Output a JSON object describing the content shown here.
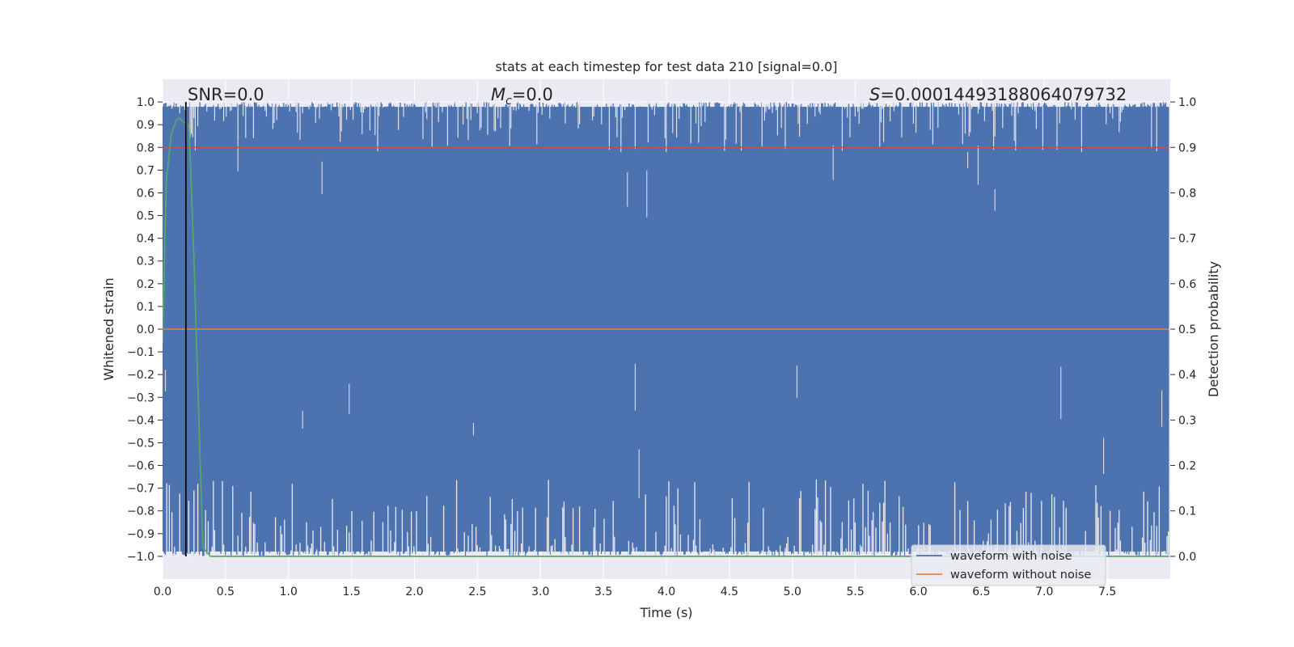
{
  "chart_data": {
    "type": "line",
    "title": "stats at each timestep for test data 210 [signal=0.0]",
    "xlabel": "Time (s)",
    "ylabel": "Whitened strain",
    "ylabel_right": "Detection probability",
    "xlim": [
      0.0,
      8.0
    ],
    "ylim": [
      -1.1,
      1.1
    ],
    "ylim_right": [
      -0.05,
      1.05
    ],
    "x_ticks": [
      "0.0",
      "0.5",
      "1.0",
      "1.5",
      "2.0",
      "2.5",
      "3.0",
      "3.5",
      "4.0",
      "4.5",
      "5.0",
      "5.5",
      "6.0",
      "6.5",
      "7.0",
      "7.5"
    ],
    "y_ticks": [
      "1.0",
      "0.9",
      "0.8",
      "0.7",
      "0.6",
      "0.5",
      "0.4",
      "0.3",
      "0.2",
      "0.1",
      "0.0",
      "−0.1",
      "−0.2",
      "−0.3",
      "−0.4",
      "−0.5",
      "−0.6",
      "−0.7",
      "−0.8",
      "−0.9",
      "−1.0"
    ],
    "y_right_ticks": [
      "1.0",
      "0.9",
      "0.8",
      "0.7",
      "0.6",
      "0.5",
      "0.4",
      "0.3",
      "0.2",
      "0.1",
      "0.0"
    ],
    "annotations": {
      "snr": "SNR=0.0",
      "mc_symbol": "M",
      "mc_sub": "c",
      "mc_value": "=0.0",
      "s_symbol": "S",
      "s_value": "=0.00014493188064079732"
    },
    "legend": {
      "position": "lower right",
      "entries": [
        "waveform with noise",
        "waveform without noise"
      ]
    },
    "colors": {
      "background": "#eaeaf2",
      "grid": "#ffffff",
      "noise": "#4c72b0",
      "clean": "#dd8452",
      "probability": "#55a868",
      "threshold": "#c44e52",
      "marker": "#000000"
    },
    "series": [
      {
        "name": "waveform with noise",
        "description": "whitened noise, clipped to [-1, 1], densely oscillating",
        "x_range": [
          0.0,
          7.99
        ],
        "y_range": [
          -1.0,
          1.0
        ]
      },
      {
        "name": "waveform without noise",
        "x": [
          0.0,
          7.99
        ],
        "y": [
          0.0,
          0.0
        ]
      },
      {
        "name": "detection probability",
        "axis": "right",
        "x": [
          0.0,
          0.03,
          0.07,
          0.11,
          0.13,
          0.17,
          0.21,
          0.25,
          0.32,
          0.38,
          0.6,
          1.0,
          2.0,
          4.0,
          6.0,
          7.99
        ],
        "y": [
          0.47,
          0.83,
          0.93,
          0.96,
          0.965,
          0.955,
          0.948,
          0.65,
          0.02,
          0.0,
          0.0,
          0.0,
          0.0,
          0.0,
          0.0,
          0.0
        ]
      }
    ],
    "threshold": {
      "axis": "right",
      "value": 0.9
    },
    "marker_time": 0.185
  }
}
